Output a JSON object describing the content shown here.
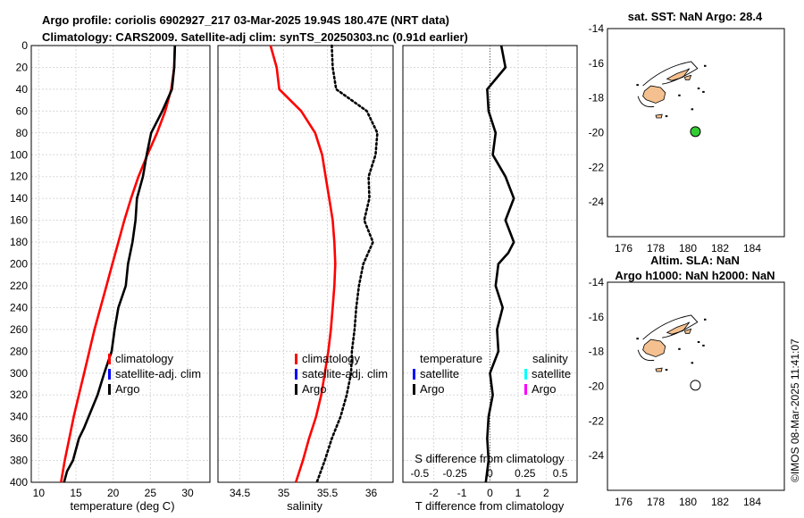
{
  "header": {
    "line1": "Argo profile: coriolis 6902927_217 03-Mar-2025 19.94S 180.47E (NRT data)",
    "line2": "Climatology: CARS2009. Satellite-adj clim: synTS_20250303.nc (0.91d earlier)"
  },
  "colors": {
    "climatology": "#ff0000",
    "satellite": "#0000ff",
    "argo": "#000000",
    "satellite_s": "#00ffff",
    "argo_s": "#ff00ff",
    "land": "#f5c08f",
    "float_marker": "#33cc33"
  },
  "depth_axis": {
    "min": 0,
    "max": 400,
    "ticks": [
      "0",
      "20",
      "40",
      "60",
      "80",
      "100",
      "120",
      "140",
      "160",
      "180",
      "200",
      "220",
      "240",
      "260",
      "280",
      "300",
      "320",
      "340",
      "360",
      "380",
      "400"
    ]
  },
  "chart_data": [
    {
      "id": "temperature",
      "type": "line",
      "xlabel": "temperature (deg C)",
      "xlim": [
        9,
        33
      ],
      "xticks": [
        "10",
        "15",
        "20",
        "25",
        "30"
      ],
      "ylim": [
        0,
        400
      ],
      "legend": {
        "position": "lower-right",
        "entries": [
          "climatology",
          "satellite-adj. clim",
          "Argo"
        ]
      },
      "series": [
        {
          "name": "climatology",
          "style": "solid",
          "x": [
            28.3,
            28.2,
            27.8,
            27.0,
            25.9,
            24.6,
            23.4,
            22.4,
            21.5,
            20.7,
            19.9,
            19.1,
            18.3,
            17.5,
            16.8,
            16.1,
            15.4,
            14.7,
            14.1,
            13.5,
            13.0
          ],
          "depth": [
            0,
            20,
            40,
            60,
            80,
            100,
            120,
            140,
            160,
            180,
            200,
            220,
            240,
            260,
            280,
            300,
            320,
            340,
            360,
            380,
            400
          ]
        },
        {
          "name": "Argo",
          "style": "solid",
          "x": [
            28.3,
            28.2,
            27.9,
            26.6,
            25.1,
            24.5,
            24.0,
            23.2,
            23.0,
            22.6,
            22.0,
            21.7,
            20.7,
            20.2,
            19.8,
            18.8,
            17.9,
            16.7,
            16.1,
            15.4,
            14.6,
            13.8,
            13.4
          ],
          "depth": [
            0,
            20,
            40,
            60,
            80,
            100,
            120,
            140,
            160,
            180,
            200,
            220,
            240,
            260,
            280,
            300,
            320,
            340,
            350,
            360,
            380,
            390,
            400
          ]
        }
      ]
    },
    {
      "id": "salinity",
      "type": "line",
      "xlabel": "salinity",
      "xlim": [
        34.25,
        36.25
      ],
      "xticks": [
        "34.5",
        "35",
        "35.5",
        "36"
      ],
      "ylim": [
        0,
        400
      ],
      "legend": {
        "position": "lower-right",
        "entries": [
          "climatology",
          "satellite-adj. clim",
          "Argo"
        ]
      },
      "series": [
        {
          "name": "climatology",
          "style": "solid",
          "x": [
            34.85,
            34.92,
            34.95,
            35.2,
            35.36,
            35.44,
            35.48,
            35.52,
            35.56,
            35.58,
            35.59,
            35.58,
            35.56,
            35.54,
            35.51,
            35.47,
            35.43,
            35.37,
            35.29,
            35.22,
            35.14
          ],
          "depth": [
            0,
            20,
            40,
            60,
            80,
            100,
            120,
            140,
            160,
            180,
            200,
            220,
            240,
            260,
            280,
            300,
            320,
            340,
            360,
            380,
            400
          ]
        },
        {
          "name": "Argo",
          "style": "dotted",
          "x": [
            35.55,
            35.56,
            35.6,
            35.95,
            36.07,
            36.05,
            35.97,
            35.98,
            35.92,
            36.02,
            35.91,
            35.86,
            35.83,
            35.81,
            35.78,
            35.77,
            35.72,
            35.65,
            35.55,
            35.47,
            35.38
          ],
          "depth": [
            0,
            20,
            40,
            60,
            80,
            100,
            120,
            140,
            160,
            180,
            200,
            220,
            240,
            260,
            280,
            300,
            320,
            340,
            360,
            380,
            400
          ]
        }
      ]
    },
    {
      "id": "difference",
      "type": "line",
      "xlabel": "T difference from climatology",
      "xlabel_top": "S difference from climatology",
      "xlim": [
        -3.1,
        3.1
      ],
      "xticks": [
        "-2",
        "-1",
        "0",
        "1",
        "2"
      ],
      "xticks_top": [
        "-0.5",
        "-0.25",
        "0",
        "0.25",
        "0.5"
      ],
      "ylim": [
        0,
        400
      ],
      "legend": {
        "position": "lower-center",
        "temperature_header": "temperature",
        "salinity_header": "salinity",
        "entries_left": [
          "satellite",
          "Argo"
        ],
        "entries_right": [
          "satellite",
          "Argo"
        ]
      },
      "series": [
        {
          "name": "T difference Argo",
          "style": "solid",
          "x": [
            0.4,
            0.55,
            -0.1,
            -0.05,
            0.2,
            0.1,
            0.55,
            0.85,
            0.55,
            0.85,
            0.65,
            0.3,
            0.2,
            0.45,
            0.25,
            0.3,
            0.0,
            0.1,
            -0.05,
            -0.1,
            -0.05,
            -0.15
          ],
          "depth": [
            0,
            20,
            40,
            60,
            80,
            100,
            120,
            140,
            160,
            180,
            190,
            200,
            220,
            240,
            260,
            280,
            300,
            320,
            340,
            360,
            380,
            400
          ]
        }
      ]
    }
  ],
  "maps": [
    {
      "id": "sst-map",
      "title": "sat. SST: NaN Argo: 28.4",
      "lon_range": [
        175,
        186
      ],
      "lat_range": [
        -26,
        -14
      ],
      "xticks": [
        "176",
        "178",
        "180",
        "182",
        "184"
      ],
      "yticks": [
        "-14",
        "-16",
        "-18",
        "-20",
        "-22",
        "-24"
      ],
      "float_lon": 180.47,
      "float_lat": -19.94,
      "marker": "filled"
    },
    {
      "id": "sla-map",
      "title_line1": "Altim. SLA: NaN",
      "title_line2": "Argo h1000: NaN h2000: NaN",
      "lon_range": [
        175,
        186
      ],
      "lat_range": [
        -26,
        -14
      ],
      "xticks": [
        "176",
        "178",
        "180",
        "182",
        "184"
      ],
      "yticks": [
        "-14",
        "-16",
        "-18",
        "-20",
        "-22",
        "-24"
      ],
      "float_lon": 180.47,
      "float_lat": -19.94,
      "marker": "open"
    }
  ],
  "footer": {
    "stamp": "©IMOS 08-Mar-2025 11:41:07"
  }
}
